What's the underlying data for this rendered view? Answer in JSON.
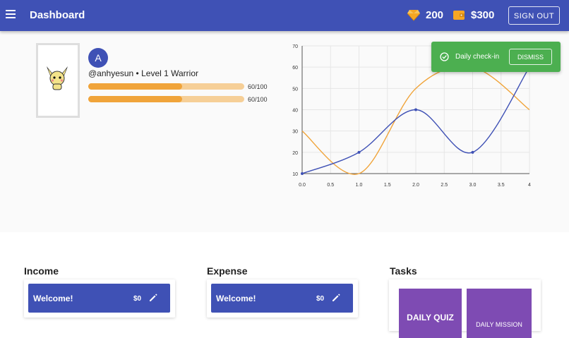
{
  "header": {
    "title": "Dashboard",
    "gems": "200",
    "money": "$300",
    "sign_out": "SIGN OUT",
    "icons": {
      "menu": "menu-icon",
      "gem": "diamond-icon",
      "wallet": "wallet-icon"
    }
  },
  "profile": {
    "avatar_letter": "A",
    "user_line": "@anhyesun • Level 1 Warrior",
    "bars": [
      {
        "label": "60/100",
        "value": 60,
        "max": 100
      },
      {
        "label": "60/100",
        "value": 60,
        "max": 100
      }
    ]
  },
  "toast": {
    "text": "Daily check-in",
    "action": "DISMISS"
  },
  "chart_data": {
    "type": "line",
    "xticks": [
      "0.0",
      "0.5",
      "1.0",
      "1.5",
      "2.0",
      "2.5",
      "3.0",
      "3.5",
      "4"
    ],
    "yticks": [
      "10",
      "20",
      "30",
      "40",
      "50",
      "60",
      "70"
    ],
    "xlim": [
      0,
      4
    ],
    "ylim": [
      10,
      70
    ],
    "grid": true,
    "series": [
      {
        "x": [
          0,
          1,
          2,
          3,
          4
        ],
        "values": [
          30,
          10,
          50,
          60,
          40
        ],
        "color": "#f0a43a",
        "markers": false
      },
      {
        "x": [
          0,
          1,
          2,
          3,
          4
        ],
        "values": [
          10,
          20,
          40,
          20,
          60
        ],
        "color": "#3f51b5",
        "markers": true
      }
    ]
  },
  "sections": {
    "income": {
      "title": "Income",
      "card_title": "Welcome!",
      "amount": "$0"
    },
    "expense": {
      "title": "Expense",
      "card_title": "Welcome!",
      "amount": "$0"
    },
    "tasks": {
      "title": "Tasks",
      "items": [
        "DAILY QUIZ",
        "DAILY MISSION"
      ]
    }
  },
  "colors": {
    "primary": "#3f51b5",
    "accent": "#f0a43a",
    "success": "#4caf50",
    "task": "#7e4bb3"
  }
}
